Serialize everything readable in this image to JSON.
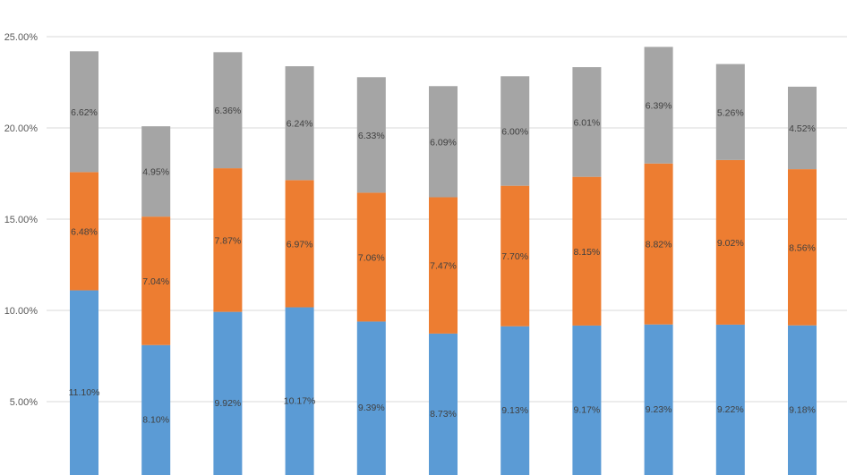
{
  "chart_data": {
    "type": "bar",
    "stacked": true,
    "ylim": [
      0,
      25
    ],
    "yticks": [
      5,
      10,
      15,
      20,
      25
    ],
    "ytick_labels": [
      "5.00%",
      "10.00%",
      "15.00%",
      "20.00%",
      "25.00%"
    ],
    "grid": true,
    "series": [
      {
        "color": "#5b9bd5",
        "values": [
          11.1,
          8.1,
          9.92,
          10.17,
          9.39,
          8.73,
          9.13,
          9.17,
          9.23,
          9.22,
          9.18
        ],
        "labels": [
          "11.10%",
          "8.10%",
          "9.92%",
          "10.17%",
          "9.39%",
          "8.73%",
          "9.13%",
          "9.17%",
          "9.23%",
          "9.22%",
          "9.18%"
        ]
      },
      {
        "color": "#ed7d31",
        "values": [
          6.48,
          7.04,
          7.87,
          6.97,
          7.06,
          7.47,
          7.7,
          8.15,
          8.82,
          9.02,
          8.56
        ],
        "labels": [
          "6.48%",
          "7.04%",
          "7.87%",
          "6.97%",
          "7.06%",
          "7.47%",
          "7.70%",
          "8.15%",
          "8.82%",
          "9.02%",
          "8.56%"
        ]
      },
      {
        "color": "#a5a5a5",
        "values": [
          6.62,
          4.95,
          6.36,
          6.24,
          6.33,
          6.09,
          6.0,
          6.01,
          6.39,
          5.26,
          4.52
        ],
        "labels": [
          "6.62%",
          "4.95%",
          "6.36%",
          "6.24%",
          "6.33%",
          "6.09%",
          "6.00%",
          "6.01%",
          "6.39%",
          "5.26%",
          "4.52%"
        ]
      }
    ]
  }
}
